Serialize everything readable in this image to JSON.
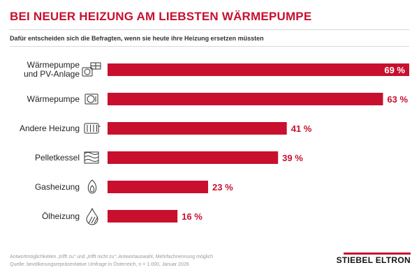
{
  "header": {
    "title": "BEI NEUER HEIZUNG AM LIEBSTEN WÄRMEPUMPE",
    "subtitle": "Dafür entscheiden sich die Befragten, wenn sie heute ihre Heizung ersetzen müssten"
  },
  "chart_data": {
    "type": "bar",
    "orientation": "horizontal",
    "categories": [
      "Wärmepumpe\nund PV-Anlage",
      "Wärmepumpe",
      "Andere Heizung",
      "Pelletkessel",
      "Gasheizung",
      "Ölheizung"
    ],
    "values": [
      69,
      63,
      41,
      39,
      23,
      16
    ],
    "value_labels": [
      "69 %",
      "63 %",
      "41 %",
      "39 %",
      "23 %",
      "16 %"
    ],
    "icons": [
      "heatpump-solar-icon",
      "heatpump-icon",
      "radiator-icon",
      "pellet-icon",
      "gas-flame-icon",
      "oil-drop-icon"
    ],
    "xlim": [
      0,
      69
    ],
    "grid": false,
    "bar_color": "#c8102e",
    "label_color": "#c8102e"
  },
  "footer": {
    "note_line1": "Antwortmöglichkeiten „trifft zu“ und „trifft nicht zu“; Antwortauswahl, Mehrfachnennung möglich",
    "note_line2": "Quelle: bevölkerungsrepräsentative Umfrage in Österreich, n = 1.000, Januar 2026",
    "logo": "STIEBEL ELTRON"
  }
}
